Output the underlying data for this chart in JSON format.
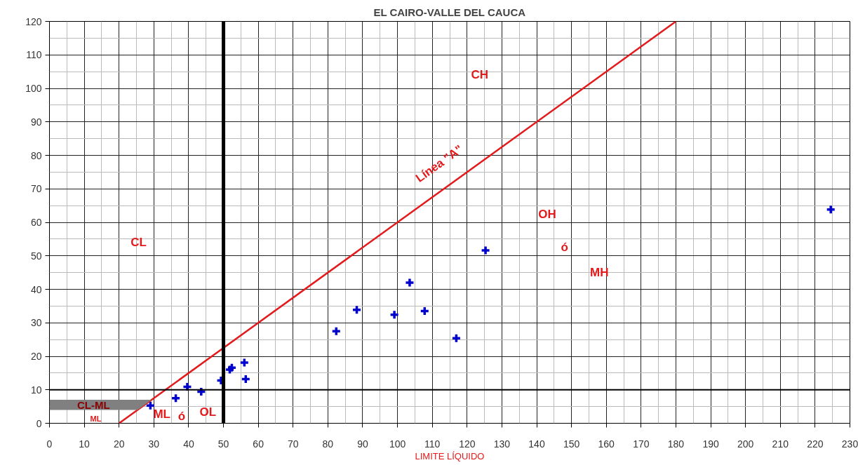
{
  "chart_data": {
    "type": "scatter",
    "title": "EL CAIRO-VALLE DEL CAUCA",
    "xlabel": "LIMITE LÍQUIDO",
    "xlim": [
      0,
      230
    ],
    "ylim": [
      0,
      120
    ],
    "xticks": [
      0,
      10,
      20,
      30,
      40,
      50,
      60,
      70,
      80,
      90,
      100,
      110,
      120,
      130,
      140,
      150,
      160,
      170,
      180,
      190,
      200,
      210,
      220,
      230
    ],
    "yticks": [
      0,
      10,
      20,
      30,
      40,
      50,
      60,
      70,
      80,
      90,
      100,
      110,
      120
    ],
    "grid": true,
    "marker": "cross",
    "series": [
      {
        "color": "#0000cc",
        "x": [
          29.0,
          36.3,
          39.6,
          43.6,
          49.3,
          51.8,
          52.4,
          56.0,
          56.4,
          82.4,
          88.3,
          99.1,
          103.5,
          107.8,
          116.9,
          125.3,
          224.5
        ],
        "values": [
          5.3,
          7.5,
          10.9,
          9.4,
          12.8,
          16.0,
          16.6,
          18.1,
          13.2,
          27.5,
          33.9,
          32.4,
          42.0,
          33.5,
          25.4,
          51.6,
          63.8
        ]
      },
      {
        "type": "line",
        "color": "#e31a1c",
        "marker": "none",
        "x": [
          20,
          180
        ],
        "values": [
          0,
          120
        ]
      }
    ],
    "bands": [
      {
        "axis": "y",
        "from": 4,
        "to": 7,
        "label": "CL-ML",
        "color": "#808080"
      }
    ],
    "ref_lines": [
      {
        "axis": "x",
        "value": 50,
        "color": "#000000"
      },
      {
        "axis": "y",
        "value": 10,
        "color": "#000000"
      }
    ],
    "annotations": [
      "CL",
      "CH",
      "Línea \"A\"",
      "OH",
      "ó",
      "MH",
      "ML",
      "ML",
      "ó",
      "OL"
    ]
  }
}
